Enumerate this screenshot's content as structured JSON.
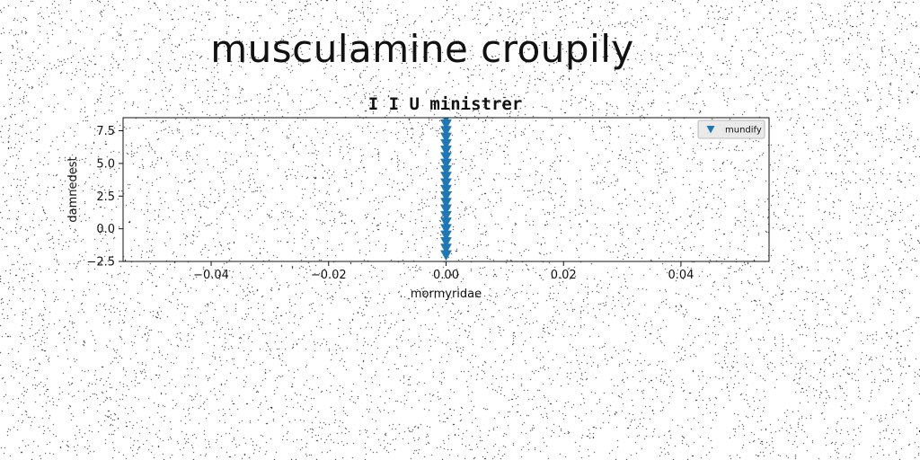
{
  "page": {
    "suptitle": "musculamine croupily"
  },
  "chart_data": {
    "type": "scatter",
    "title": "I I U ministrer",
    "xlabel": "mormyridae",
    "ylabel": "damnedest",
    "xlim": [
      -0.055,
      0.055
    ],
    "ylim": [
      -2.5,
      8.5
    ],
    "xticks": [
      -0.04,
      -0.02,
      0.0,
      0.02,
      0.04
    ],
    "xtick_labels": [
      "−0.04",
      "−0.02",
      "0.00",
      "0.02",
      "0.04"
    ],
    "yticks": [
      -2.5,
      0.0,
      2.5,
      5.0,
      7.5
    ],
    "ytick_labels": [
      "−2.5",
      "0.0",
      "2.5",
      "5.0",
      "7.5"
    ],
    "grid": false,
    "legend_position": "top-right",
    "series": [
      {
        "name": "mundify",
        "marker": "triangle-down",
        "color": "#1f77b4",
        "x": [
          0,
          0,
          0,
          0,
          0,
          0,
          0,
          0,
          0,
          0,
          0,
          0,
          0,
          0,
          0,
          0,
          0,
          0,
          0,
          0,
          0,
          0,
          0,
          0
        ],
        "y": [
          -2.0,
          -1.5,
          -1.0,
          -0.5,
          0.0,
          0.5,
          1.0,
          1.5,
          2.0,
          2.5,
          3.0,
          3.5,
          4.0,
          4.5,
          5.0,
          5.5,
          6.0,
          6.5,
          7.0,
          7.5,
          8.0,
          8.5,
          8.8,
          9.0
        ]
      }
    ]
  }
}
